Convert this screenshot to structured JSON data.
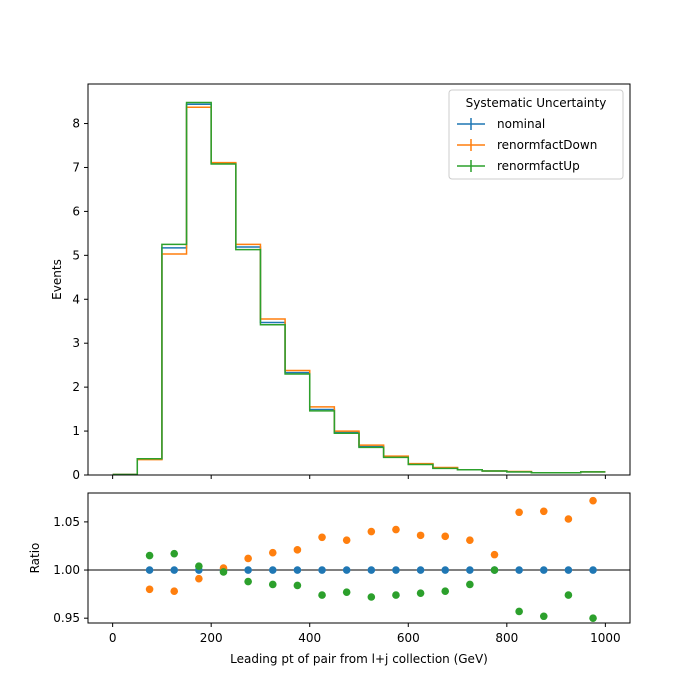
{
  "chart_data": [
    {
      "type": "line",
      "panel": "main",
      "step": true,
      "title": "",
      "xlabel": "",
      "ylabel": "Events",
      "xlim": [
        -50,
        1050
      ],
      "ylim": [
        0,
        8.9
      ],
      "yticks": [
        0,
        1,
        2,
        3,
        4,
        5,
        6,
        7,
        8
      ],
      "bin_edges": [
        0,
        50,
        100,
        150,
        200,
        250,
        300,
        350,
        400,
        450,
        500,
        550,
        600,
        650,
        700,
        750,
        800,
        850,
        900,
        950,
        1000
      ],
      "legend": {
        "title": "Systematic Uncertainty",
        "position": "top-right"
      },
      "grid": false,
      "series": [
        {
          "name": "nominal",
          "color": "#1f77b4",
          "values": [
            0.01,
            0.36,
            5.17,
            8.44,
            7.09,
            5.19,
            3.47,
            2.33,
            1.49,
            0.97,
            0.65,
            0.41,
            0.25,
            0.16,
            0.12,
            0.09,
            0.07,
            0.05,
            0.05,
            0.07
          ]
        },
        {
          "name": "renormfactDown",
          "color": "#ff7f0e",
          "values": [
            0.01,
            0.35,
            5.03,
            8.37,
            7.11,
            5.25,
            3.55,
            2.38,
            1.55,
            1.0,
            0.68,
            0.43,
            0.26,
            0.17,
            0.12,
            0.09,
            0.08,
            0.05,
            0.05,
            0.07
          ]
        },
        {
          "name": "renormfactUp",
          "color": "#2ca02c",
          "values": [
            0.01,
            0.37,
            5.25,
            8.48,
            7.08,
            5.13,
            3.42,
            2.3,
            1.46,
            0.95,
            0.63,
            0.4,
            0.24,
            0.15,
            0.12,
            0.09,
            0.07,
            0.05,
            0.05,
            0.07
          ]
        }
      ]
    },
    {
      "type": "scatter",
      "panel": "ratio",
      "title": "",
      "xlabel": "Leading pt of pair from l+j collection (GeV)",
      "ylabel": "Ratio",
      "xlim": [
        -50,
        1050
      ],
      "ylim": [
        0.945,
        1.08
      ],
      "xticks": [
        0,
        200,
        400,
        600,
        800,
        1000
      ],
      "yticks": [
        0.95,
        1.0,
        1.05
      ],
      "ytick_labels": [
        "0.95",
        "1.00",
        "1.05"
      ],
      "reference_line": 1.0,
      "x": [
        75,
        125,
        175,
        225,
        275,
        325,
        375,
        425,
        475,
        525,
        575,
        625,
        675,
        725,
        775,
        825,
        875,
        925,
        975
      ],
      "series": [
        {
          "name": "nominal",
          "color": "#1f77b4",
          "values": [
            1.0,
            1.0,
            1.0,
            1.0,
            1.0,
            1.0,
            1.0,
            1.0,
            1.0,
            1.0,
            1.0,
            1.0,
            1.0,
            1.0,
            1.0,
            1.0,
            1.0,
            1.0,
            1.0
          ]
        },
        {
          "name": "renormfactDown",
          "color": "#ff7f0e",
          "values": [
            0.98,
            0.978,
            0.991,
            1.002,
            1.012,
            1.018,
            1.021,
            1.034,
            1.031,
            1.04,
            1.042,
            1.036,
            1.035,
            1.031,
            1.016,
            1.06,
            1.061,
            1.053,
            1.072
          ]
        },
        {
          "name": "renormfactUp",
          "color": "#2ca02c",
          "values": [
            1.015,
            1.017,
            1.004,
            0.998,
            0.988,
            0.985,
            0.984,
            0.974,
            0.977,
            0.972,
            0.974,
            0.976,
            0.978,
            0.985,
            1.0,
            0.957,
            0.952,
            0.974,
            0.95
          ]
        }
      ]
    }
  ]
}
